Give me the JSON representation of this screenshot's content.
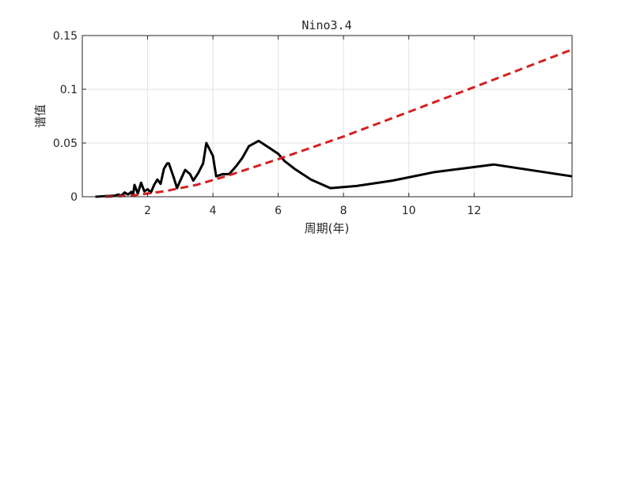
{
  "chart_data": {
    "type": "line",
    "title": "Nino3.4",
    "xlabel": "周期(年)",
    "ylabel": "谱值",
    "xlim": [
      0,
      15
    ],
    "ylim": [
      0,
      0.15
    ],
    "xticks": [
      2,
      4,
      6,
      8,
      10,
      12
    ],
    "xtick_labels": [
      "2",
      "4",
      "6",
      "8",
      "10",
      "12"
    ],
    "yticks": [
      0,
      0.05,
      0.1,
      0.15
    ],
    "ytick_labels": [
      "0",
      "0.05",
      "0.1",
      "0.15"
    ],
    "grid": true,
    "legend": "none",
    "series": [
      {
        "style": "solid",
        "color": "#000000",
        "points": [
          [
            0.4,
            0.0
          ],
          [
            0.7,
            0.0005
          ],
          [
            1.0,
            0.001
          ],
          [
            1.1,
            0.002
          ],
          [
            1.2,
            0.001
          ],
          [
            1.3,
            0.004
          ],
          [
            1.4,
            0.002
          ],
          [
            1.5,
            0.0045
          ],
          [
            1.55,
            0.001
          ],
          [
            1.6,
            0.011
          ],
          [
            1.7,
            0.003
          ],
          [
            1.8,
            0.013
          ],
          [
            1.9,
            0.005
          ],
          [
            2.0,
            0.007
          ],
          [
            2.1,
            0.004
          ],
          [
            2.2,
            0.011
          ],
          [
            2.3,
            0.016
          ],
          [
            2.4,
            0.012
          ],
          [
            2.5,
            0.026
          ],
          [
            2.6,
            0.031
          ],
          [
            2.65,
            0.031
          ],
          [
            2.8,
            0.018
          ],
          [
            2.9,
            0.008
          ],
          [
            3.0,
            0.015
          ],
          [
            3.15,
            0.025
          ],
          [
            3.3,
            0.021
          ],
          [
            3.4,
            0.015
          ],
          [
            3.55,
            0.022
          ],
          [
            3.7,
            0.031
          ],
          [
            3.8,
            0.05
          ],
          [
            4.0,
            0.038
          ],
          [
            4.1,
            0.019
          ],
          [
            4.3,
            0.021
          ],
          [
            4.5,
            0.021
          ],
          [
            4.7,
            0.028
          ],
          [
            4.9,
            0.036
          ],
          [
            5.1,
            0.047
          ],
          [
            5.4,
            0.052
          ],
          [
            5.7,
            0.046
          ],
          [
            6.0,
            0.04
          ],
          [
            6.2,
            0.033
          ],
          [
            6.5,
            0.026
          ],
          [
            7.0,
            0.016
          ],
          [
            7.6,
            0.008
          ],
          [
            8.4,
            0.01
          ],
          [
            9.5,
            0.015
          ],
          [
            10.8,
            0.023
          ],
          [
            12.6,
            0.03
          ],
          [
            15.0,
            0.019
          ]
        ]
      },
      {
        "style": "dashed",
        "color": "#d42020",
        "points": [
          [
            0.7,
            0.0
          ],
          [
            1.5,
            0.001
          ],
          [
            2.5,
            0.005
          ],
          [
            3.5,
            0.011
          ],
          [
            4.5,
            0.02
          ],
          [
            6.0,
            0.035
          ],
          [
            8.0,
            0.056
          ],
          [
            10.0,
            0.079
          ],
          [
            12.0,
            0.102
          ],
          [
            15.0,
            0.137
          ]
        ]
      }
    ]
  }
}
